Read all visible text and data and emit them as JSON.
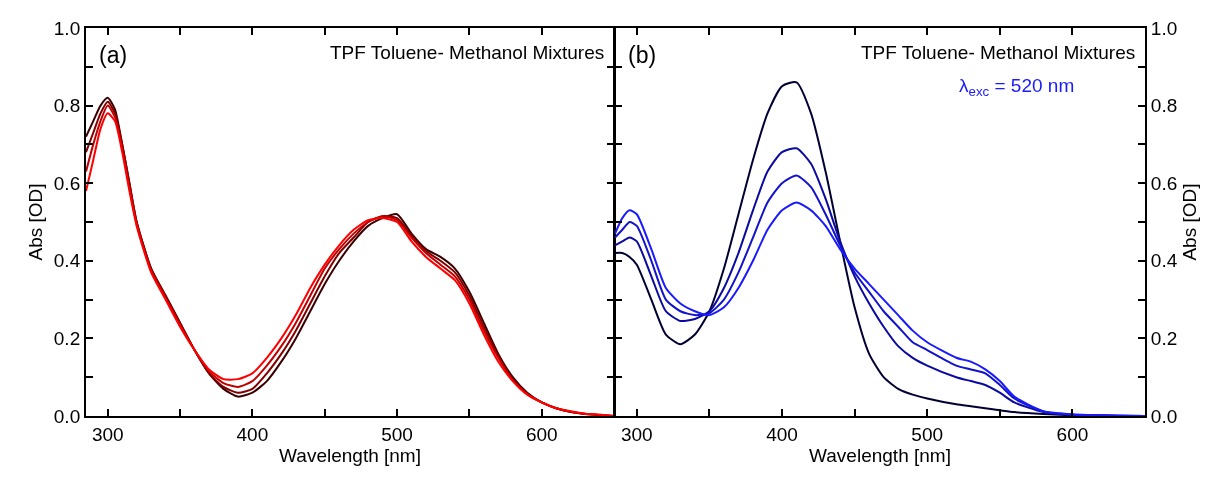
{
  "chart_data": [
    {
      "type": "line",
      "xlabel": "Wavelength [nm]",
      "ylabel": "Abs [OD]",
      "xlim": [
        285,
        650
      ],
      "ylim": [
        0,
        1.0
      ],
      "xticks": [
        300,
        {
          "value": 350,
          "label": null
        },
        400,
        {
          "value": 450,
          "label": null
        },
        500,
        {
          "value": 550,
          "label": null
        },
        600
      ],
      "yticks": [
        {
          "value": 0,
          "label": "0.0"
        },
        {
          "value": 0.1,
          "label": null
        },
        0.2,
        {
          "value": 0.3,
          "label": null
        },
        0.4,
        {
          "value": 0.5,
          "label": null
        },
        0.6,
        {
          "value": 0.7,
          "label": null
        },
        0.8,
        {
          "value": 0.9,
          "label": null
        },
        {
          "value": 1,
          "label": "1.0"
        }
      ],
      "annotations": [
        "(a)",
        "TPF Toluene- Methanol Mixtures"
      ],
      "marker": "none",
      "line_style": "solid",
      "x": [
        285,
        290,
        295,
        300,
        305,
        310,
        315,
        320,
        330,
        340,
        350,
        360,
        370,
        380,
        390,
        400,
        410,
        420,
        430,
        440,
        450,
        460,
        470,
        480,
        490,
        500,
        510,
        520,
        530,
        540,
        550,
        560,
        570,
        580,
        590,
        600,
        610,
        620,
        630,
        640,
        650
      ],
      "series": [
        {
          "color": "#3a0000",
          "values": [
            0.72,
            0.76,
            0.8,
            0.82,
            0.79,
            0.7,
            0.6,
            0.5,
            0.38,
            0.31,
            0.24,
            0.17,
            0.11,
            0.07,
            0.05,
            0.06,
            0.09,
            0.14,
            0.2,
            0.27,
            0.34,
            0.4,
            0.45,
            0.49,
            0.51,
            0.52,
            0.47,
            0.43,
            0.41,
            0.38,
            0.32,
            0.24,
            0.16,
            0.1,
            0.06,
            0.035,
            0.02,
            0.01,
            0.005,
            null,
            null
          ]
        },
        {
          "color": "#800000",
          "values": [
            0.68,
            0.73,
            0.78,
            0.81,
            0.78,
            0.7,
            0.6,
            0.5,
            0.38,
            0.31,
            0.24,
            0.17,
            0.11,
            0.075,
            0.06,
            0.07,
            0.11,
            0.16,
            0.22,
            0.29,
            0.36,
            0.42,
            0.46,
            0.5,
            0.515,
            0.51,
            0.465,
            0.425,
            0.4,
            0.37,
            0.31,
            0.23,
            0.155,
            0.095,
            0.058,
            0.035,
            0.02,
            0.011,
            0.005,
            0.002,
            0.0
          ]
        },
        {
          "color": "#c00000",
          "values": [
            0.63,
            0.7,
            0.76,
            0.8,
            0.77,
            0.69,
            0.59,
            0.495,
            0.375,
            0.305,
            0.235,
            0.17,
            0.115,
            0.085,
            0.075,
            0.09,
            0.13,
            0.18,
            0.24,
            0.31,
            0.38,
            0.43,
            0.47,
            0.5,
            0.515,
            0.505,
            0.46,
            0.42,
            0.39,
            0.36,
            0.3,
            0.22,
            0.15,
            0.092,
            0.056,
            0.035,
            0.02,
            0.011,
            0.006,
            0.003,
            0.0
          ]
        },
        {
          "color": "#ff0000",
          "values": [
            0.58,
            0.66,
            0.74,
            0.78,
            0.76,
            0.68,
            0.58,
            0.49,
            0.37,
            0.3,
            0.23,
            0.17,
            0.12,
            0.095,
            0.095,
            0.11,
            0.15,
            0.2,
            0.26,
            0.33,
            0.39,
            0.44,
            0.48,
            0.505,
            0.51,
            0.5,
            0.45,
            0.41,
            0.38,
            0.35,
            0.29,
            0.21,
            0.14,
            0.09,
            0.055,
            0.035,
            0.02,
            0.012,
            0.006,
            0.003,
            0.0
          ]
        }
      ]
    },
    {
      "type": "line",
      "xlabel": "Wavelength [nm]",
      "ylabel": "Abs [OD]",
      "xlim": [
        285,
        650
      ],
      "ylim": [
        0,
        1.0
      ],
      "xticks": [
        300,
        {
          "value": 350,
          "label": null
        },
        400,
        {
          "value": 450,
          "label": null
        },
        500,
        {
          "value": 550,
          "label": null
        },
        600
      ],
      "yticks": [
        {
          "value": 0,
          "label": "0.0"
        },
        {
          "value": 0.1,
          "label": null
        },
        0.2,
        {
          "value": 0.3,
          "label": null
        },
        0.4,
        {
          "value": 0.5,
          "label": null
        },
        0.6,
        {
          "value": 0.7,
          "label": null
        },
        0.8,
        {
          "value": 0.9,
          "label": null
        },
        {
          "value": 1,
          "label": "1.0"
        }
      ],
      "annotations": [
        "(b)",
        "TPF Toluene- Methanol Mixtures",
        "λ$_{exc}$ = 520 nm"
      ],
      "marker": "none",
      "line_style": "solid",
      "x": [
        285,
        290,
        295,
        300,
        310,
        320,
        330,
        340,
        350,
        360,
        370,
        380,
        390,
        400,
        410,
        420,
        430,
        440,
        450,
        460,
        470,
        480,
        490,
        500,
        520,
        530,
        540,
        550,
        560,
        580,
        600,
        650
      ],
      "series": [
        {
          "color": "#000033",
          "values": [
            0.42,
            0.42,
            0.41,
            0.39,
            0.3,
            0.21,
            0.185,
            0.21,
            0.27,
            0.38,
            0.52,
            0.66,
            0.78,
            0.85,
            0.86,
            0.78,
            0.63,
            0.45,
            0.28,
            0.16,
            0.1,
            0.07,
            0.055,
            0.045,
            0.03,
            0.025,
            0.02,
            0.015,
            0.01,
            0.005,
            0.002,
            0.0
          ]
        },
        {
          "color": "#0a0aa0",
          "values": [
            0.44,
            0.45,
            0.46,
            0.45,
            0.36,
            0.27,
            0.245,
            0.25,
            0.27,
            0.33,
            0.42,
            0.53,
            0.63,
            0.68,
            0.69,
            0.65,
            0.56,
            0.45,
            0.36,
            0.29,
            0.23,
            0.18,
            0.15,
            0.13,
            0.1,
            0.09,
            0.08,
            0.06,
            0.035,
            0.01,
            0.003,
            0.0
          ]
        },
        {
          "color": "#1212cc",
          "values": [
            0.46,
            0.48,
            0.5,
            0.49,
            0.4,
            0.3,
            0.27,
            0.26,
            0.265,
            0.3,
            0.37,
            0.46,
            0.55,
            0.6,
            0.62,
            0.59,
            0.52,
            0.44,
            0.37,
            0.32,
            0.27,
            0.23,
            0.19,
            0.17,
            0.13,
            0.12,
            0.11,
            0.08,
            0.045,
            0.012,
            0.004,
            0.0
          ]
        },
        {
          "color": "#1a1aff",
          "values": [
            0.47,
            0.51,
            0.53,
            0.52,
            0.43,
            0.33,
            0.29,
            0.27,
            0.26,
            0.28,
            0.33,
            0.4,
            0.48,
            0.53,
            0.55,
            0.53,
            0.49,
            0.43,
            0.38,
            0.34,
            0.3,
            0.26,
            0.22,
            0.19,
            0.15,
            0.14,
            0.12,
            0.09,
            0.05,
            0.012,
            0.004,
            0.0
          ]
        }
      ]
    }
  ]
}
